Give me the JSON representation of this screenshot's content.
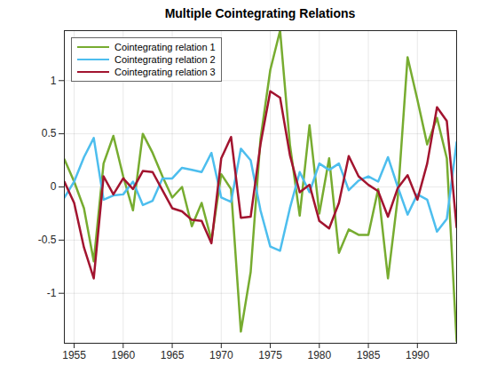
{
  "chart_data": {
    "type": "line",
    "title": "Multiple  Cointegrating  Relations",
    "x": [
      1954,
      1955,
      1956,
      1957,
      1958,
      1959,
      1960,
      1961,
      1962,
      1963,
      1964,
      1965,
      1966,
      1967,
      1968,
      1969,
      1970,
      1971,
      1972,
      1973,
      1974,
      1975,
      1976,
      1977,
      1978,
      1979,
      1980,
      1981,
      1982,
      1983,
      1984,
      1985,
      1986,
      1987,
      1988,
      1989,
      1990,
      1991,
      1992,
      1993,
      1994
    ],
    "series": [
      {
        "name": "Cointegrating relation  1",
        "color": "#77ac30",
        "values": [
          0.26,
          0.05,
          -0.2,
          -0.7,
          0.22,
          0.48,
          0.1,
          -0.22,
          0.5,
          0.32,
          0.1,
          -0.1,
          0.0,
          -0.37,
          -0.15,
          -0.5,
          0.12,
          -0.02,
          -1.36,
          -0.8,
          0.45,
          1.1,
          1.47,
          0.4,
          -0.27,
          0.58,
          -0.25,
          0.27,
          -0.62,
          -0.4,
          -0.45,
          -0.45,
          -0.02,
          -0.86,
          -0.1,
          1.22,
          0.82,
          0.4,
          0.65,
          0.27,
          -1.45
        ]
      },
      {
        "name": "Cointegrating relation  2",
        "color": "#4dbeee",
        "values": [
          -0.1,
          0.05,
          0.28,
          0.46,
          -0.12,
          -0.08,
          -0.07,
          0.05,
          -0.17,
          -0.13,
          0.08,
          0.08,
          0.18,
          0.16,
          0.14,
          0.32,
          -0.1,
          -0.14,
          0.36,
          0.25,
          -0.22,
          -0.56,
          -0.6,
          -0.2,
          0.14,
          -0.05,
          0.22,
          0.16,
          0.22,
          -0.03,
          0.06,
          0.1,
          0.05,
          0.28,
          0.0,
          -0.26,
          -0.07,
          -0.12,
          -0.42,
          -0.3,
          0.42
        ]
      },
      {
        "name": "Cointegrating relation  3",
        "color": "#a2142f",
        "values": [
          0.05,
          -0.15,
          -0.57,
          -0.86,
          0.1,
          -0.07,
          0.08,
          -0.02,
          0.15,
          0.14,
          -0.03,
          -0.2,
          -0.23,
          -0.31,
          -0.32,
          -0.53,
          0.27,
          0.47,
          -0.29,
          -0.28,
          0.4,
          0.9,
          0.84,
          0.3,
          -0.05,
          0.02,
          -0.32,
          -0.39,
          -0.15,
          0.29,
          0.1,
          0.02,
          -0.04,
          -0.28,
          -0.01,
          0.11,
          -0.12,
          0.22,
          0.75,
          0.62,
          -0.38
        ]
      }
    ],
    "xlim": [
      1954,
      1994
    ],
    "xticks": [
      1955,
      1960,
      1965,
      1970,
      1975,
      1980,
      1985,
      1990
    ],
    "ylim": [
      -1.47,
      1.47
    ],
    "yticks": [
      -1,
      -0.5,
      0,
      0.5,
      1
    ],
    "grid": true,
    "legend": "northwest",
    "marker": "none",
    "line_style": "solid"
  }
}
